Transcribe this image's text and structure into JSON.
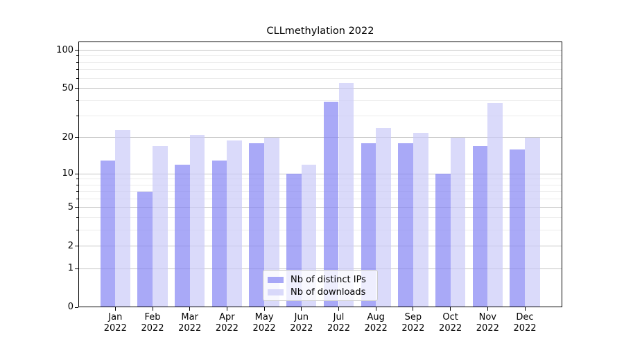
{
  "chart_data": {
    "type": "bar",
    "title": "CLLmethylation 2022",
    "categories": [
      "Jan",
      "Feb",
      "Mar",
      "Apr",
      "May",
      "Jun",
      "Jul",
      "Aug",
      "Sep",
      "Oct",
      "Nov",
      "Dec"
    ],
    "year_label": "2022",
    "series": [
      {
        "name": "Nb of distinct IPs",
        "color": "rgba(132,132,244,0.7)",
        "values": [
          13,
          7,
          12,
          13,
          18,
          10,
          39,
          18,
          18,
          10,
          17,
          16
        ]
      },
      {
        "name": "Nb of downloads",
        "color": "rgba(202,202,248,0.7)",
        "values": [
          23,
          17,
          21,
          19,
          20,
          12,
          55,
          24,
          22,
          20,
          38,
          20
        ]
      }
    ],
    "yscale": "log1p",
    "ylim": [
      0,
      117
    ],
    "yticks": [
      100,
      50,
      20,
      10,
      5,
      2,
      1,
      0
    ],
    "minor_gridlines": [
      3,
      4,
      6,
      7,
      8,
      9,
      30,
      40,
      60,
      70,
      80,
      90
    ],
    "grid": "both",
    "legend_position": "lower center",
    "xlabel": "",
    "ylabel": ""
  },
  "legend": {
    "entries": [
      {
        "label": "Nb of distinct IPs",
        "color": "rgba(132,132,244,0.7)"
      },
      {
        "label": "Nb of downloads",
        "color": "rgba(202,202,248,0.7)"
      }
    ]
  }
}
